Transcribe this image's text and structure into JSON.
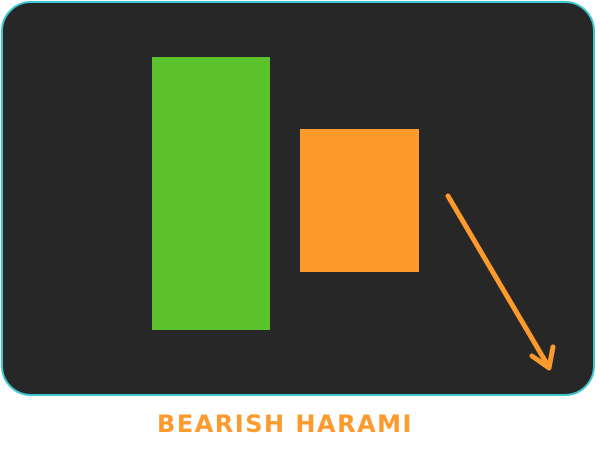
{
  "caption": "BEARISH HARAMI",
  "colors": {
    "panel_background": "#272727",
    "panel_border": "#3fc7cf",
    "bullish_candle": "#5bc22d",
    "bearish_candle": "#fd9a2e",
    "arrow": "#fd9a2e",
    "caption": "#fd9a2e"
  },
  "icons": {
    "trend_arrow": "down-right-arrow-icon"
  }
}
